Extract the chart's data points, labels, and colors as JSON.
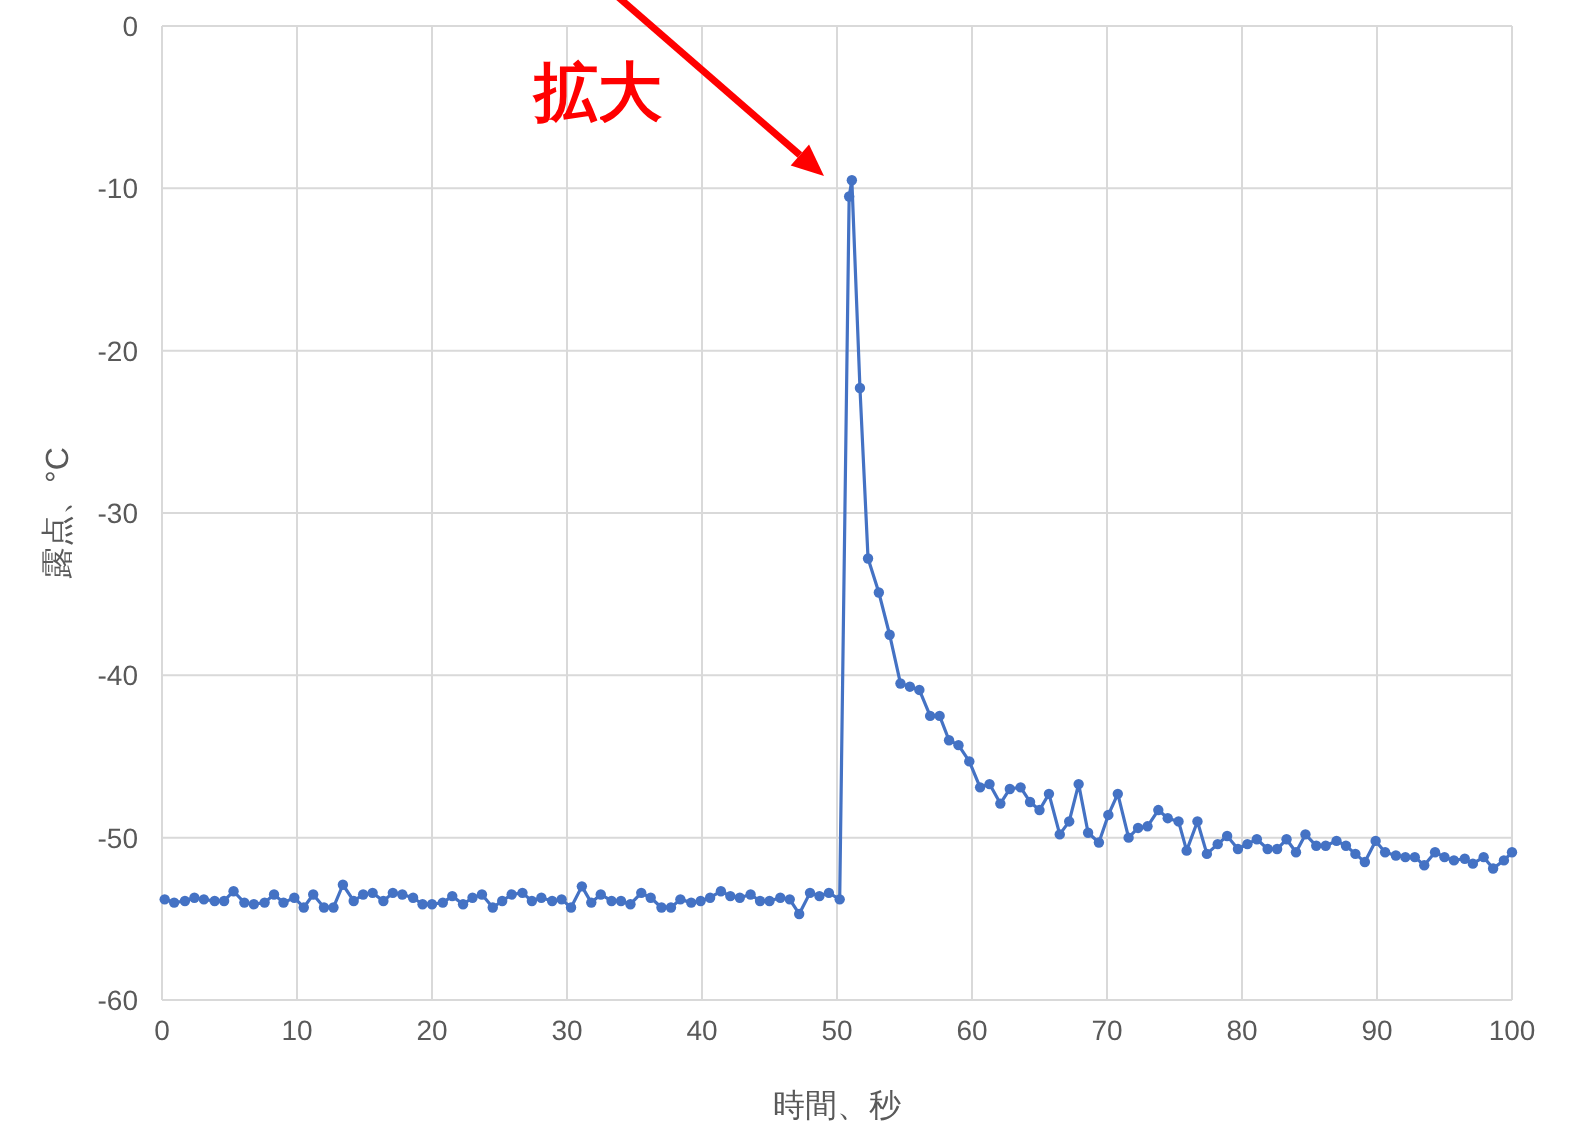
{
  "chart_data": {
    "type": "line",
    "xlabel": "時間、秒",
    "ylabel": "露点、°C",
    "xlim": [
      0,
      100
    ],
    "xticks": [
      0,
      10,
      20,
      30,
      40,
      50,
      60,
      70,
      80,
      90,
      100
    ],
    "ylim": [
      -60,
      0
    ],
    "yticks": [
      -60,
      -50,
      -40,
      -30,
      -20,
      -10,
      0
    ],
    "grid": true,
    "marker": "circle",
    "annotations": [
      "拡大"
    ],
    "series": [
      {
        "color": "#4472c4",
        "x": [
          0.2,
          0.9,
          1.7,
          2.4,
          3.1,
          3.9,
          4.6,
          5.3,
          6.1,
          6.8,
          7.6,
          8.3,
          9.0,
          9.8,
          10.5,
          11.2,
          12.0,
          12.7,
          13.4,
          14.2,
          14.9,
          15.6,
          16.4,
          17.1,
          17.8,
          18.6,
          19.3,
          20.0,
          20.8,
          21.5,
          22.3,
          23.0,
          23.7,
          24.5,
          25.2,
          25.9,
          26.7,
          27.4,
          28.1,
          28.9,
          29.6,
          30.3,
          31.1,
          31.8,
          32.5,
          33.3,
          34.0,
          34.7,
          35.5,
          36.2,
          37.0,
          37.7,
          38.4,
          39.2,
          39.9,
          40.6,
          41.4,
          42.1,
          42.8,
          43.6,
          44.3,
          45.0,
          45.8,
          46.5,
          47.2,
          48.0,
          48.7,
          49.4,
          50.2,
          50.9,
          51.1,
          51.7,
          52.3,
          53.1,
          53.9,
          54.7,
          55.4,
          56.1,
          56.9,
          57.6,
          58.3,
          59.0,
          59.8,
          60.6,
          61.3,
          62.1,
          62.8,
          63.6,
          64.3,
          65.0,
          65.7,
          66.5,
          67.2,
          67.9,
          68.6,
          69.4,
          70.1,
          70.8,
          71.6,
          72.3,
          73.0,
          73.8,
          74.5,
          75.3,
          75.9,
          76.7,
          77.4,
          78.2,
          78.9,
          79.7,
          80.4,
          81.1,
          81.9,
          82.6,
          83.3,
          84.0,
          84.7,
          85.5,
          86.2,
          87.0,
          87.7,
          88.4,
          89.1,
          89.9,
          90.6,
          91.4,
          92.1,
          92.8,
          93.5,
          94.3,
          95.0,
          95.7,
          96.5,
          97.1,
          97.9,
          98.6,
          99.4,
          100
        ],
        "values": [
          -53.8,
          -54.0,
          -53.9,
          -53.7,
          -53.8,
          -53.9,
          -53.9,
          -53.3,
          -54.0,
          -54.1,
          -54.0,
          -53.5,
          -54.0,
          -53.7,
          -54.3,
          -53.5,
          -54.3,
          -54.3,
          -52.9,
          -53.9,
          -53.5,
          -53.4,
          -53.9,
          -53.4,
          -53.5,
          -53.7,
          -54.1,
          -54.1,
          -54.0,
          -53.6,
          -54.1,
          -53.7,
          -53.5,
          -54.3,
          -53.9,
          -53.5,
          -53.4,
          -53.9,
          -53.7,
          -53.9,
          -53.8,
          -54.3,
          -53.0,
          -54.0,
          -53.5,
          -53.9,
          -53.9,
          -54.1,
          -53.4,
          -53.7,
          -54.3,
          -54.3,
          -53.8,
          -54.0,
          -53.9,
          -53.7,
          -53.3,
          -53.6,
          -53.7,
          -53.5,
          -53.9,
          -53.9,
          -53.7,
          -53.8,
          -54.7,
          -53.4,
          -53.6,
          -53.4,
          -53.8,
          -10.5,
          -9.5,
          -22.3,
          -32.8,
          -34.9,
          -37.5,
          -40.5,
          -40.7,
          -40.9,
          -42.5,
          -42.5,
          -44.0,
          -44.3,
          -45.3,
          -46.9,
          -46.7,
          -47.9,
          -47.0,
          -46.9,
          -47.8,
          -48.3,
          -47.3,
          -49.8,
          -49.0,
          -46.7,
          -49.7,
          -50.3,
          -48.6,
          -47.3,
          -50.0,
          -49.4,
          -49.3,
          -48.3,
          -48.8,
          -49.0,
          -50.8,
          -49.0,
          -51.0,
          -50.4,
          -49.9,
          -50.7,
          -50.4,
          -50.1,
          -50.7,
          -50.7,
          -50.1,
          -50.9,
          -49.8,
          -50.5,
          -50.5,
          -50.2,
          -50.5,
          -51.0,
          -51.5,
          -50.2,
          -50.9,
          -51.1,
          -51.2,
          -51.2,
          -51.7,
          -50.9,
          -51.2,
          -51.4,
          -51.3,
          -51.6,
          -51.2,
          -51.9,
          -51.4,
          -50.9
        ]
      }
    ]
  }
}
